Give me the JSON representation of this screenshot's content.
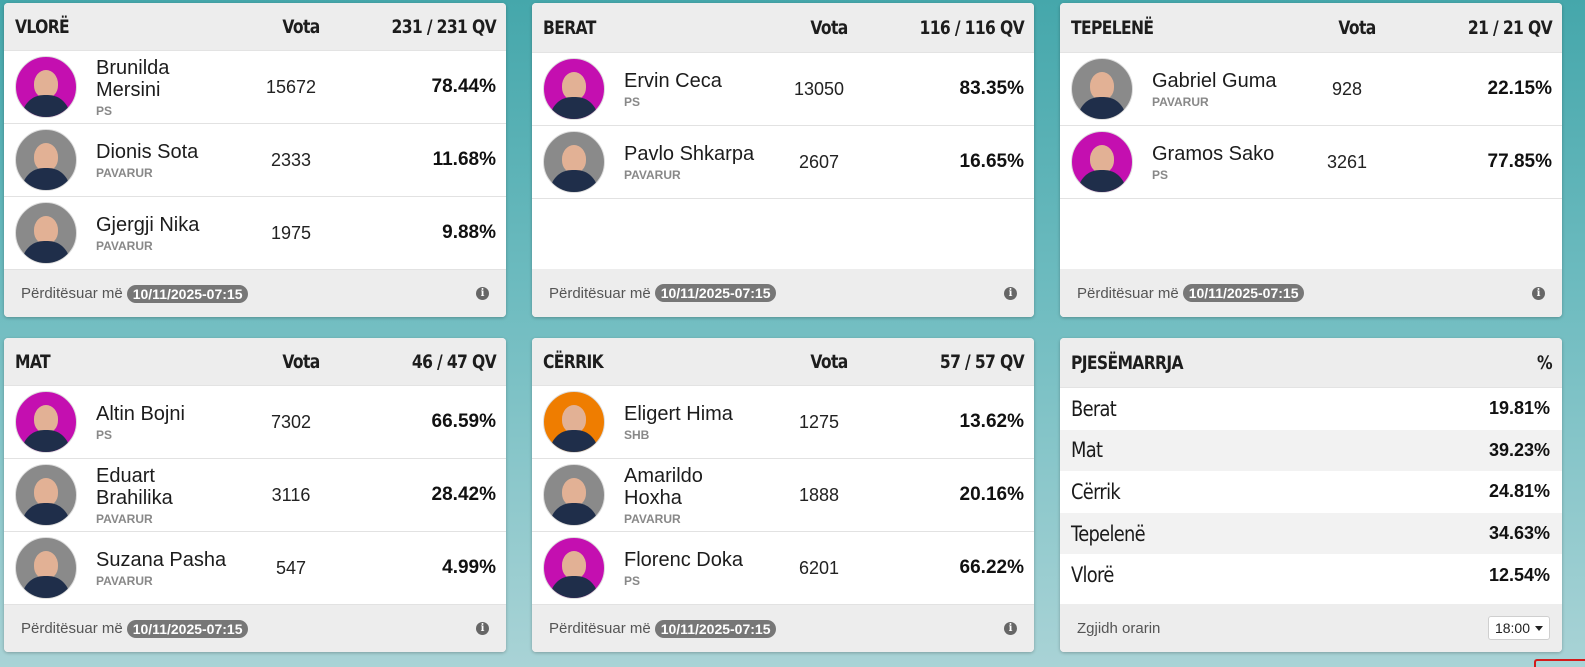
{
  "colors": {
    "ps": "#c40fb0",
    "pavarur": "#8a8a8a",
    "shb": "#ef7d00"
  },
  "cards": [
    {
      "title": "VLORË",
      "votes_header": "Vota",
      "qv": "231 / 231 QV",
      "candidates": [
        {
          "name": "Brunilda Mersini",
          "party": "PS",
          "votes": "15672",
          "pct": "78.44%"
        },
        {
          "name": "Dionis Sota",
          "party": "PAVARUR",
          "votes": "2333",
          "pct": "11.68%"
        },
        {
          "name": "Gjergji Nika",
          "party": "PAVARUR",
          "votes": "1975",
          "pct": "9.88%"
        }
      ],
      "updated_label": "Përditësuar më",
      "updated_at": "10/11/2025-07:15"
    },
    {
      "title": "BERAT",
      "votes_header": "Vota",
      "qv": "116 / 116 QV",
      "candidates": [
        {
          "name": "Ervin Ceca",
          "party": "PS",
          "votes": "13050",
          "pct": "83.35%"
        },
        {
          "name": "Pavlo Shkarpa",
          "party": "PAVARUR",
          "votes": "2607",
          "pct": "16.65%"
        }
      ],
      "updated_label": "Përditësuar më",
      "updated_at": "10/11/2025-07:15"
    },
    {
      "title": "TEPELENË",
      "votes_header": "Vota",
      "qv": "21 / 21 QV",
      "candidates": [
        {
          "name": "Gabriel Guma",
          "party": "PAVARUR",
          "votes": "928",
          "pct": "22.15%"
        },
        {
          "name": "Gramos Sako",
          "party": "PS",
          "votes": "3261",
          "pct": "77.85%"
        }
      ],
      "updated_label": "Përditësuar më",
      "updated_at": "10/11/2025-07:15"
    },
    {
      "title": "MAT",
      "votes_header": "Vota",
      "qv": "46 / 47 QV",
      "candidates": [
        {
          "name": "Altin Bojni",
          "party": "PS",
          "votes": "7302",
          "pct": "66.59%"
        },
        {
          "name": "Eduart Brahilika",
          "party": "PAVARUR",
          "votes": "3116",
          "pct": "28.42%"
        },
        {
          "name": "Suzana Pasha",
          "party": "PAVARUR",
          "votes": "547",
          "pct": "4.99%"
        }
      ],
      "updated_label": "Përditësuar më",
      "updated_at": "10/11/2025-07:15"
    },
    {
      "title": "CËRRIK",
      "votes_header": "Vota",
      "qv": "57 / 57 QV",
      "candidates": [
        {
          "name": "Eligert Hima",
          "party": "SHB",
          "votes": "1275",
          "pct": "13.62%"
        },
        {
          "name": "Amarildo Hoxha",
          "party": "PAVARUR",
          "votes": "1888",
          "pct": "20.16%"
        },
        {
          "name": "Florenc Doka",
          "party": "PS",
          "votes": "6201",
          "pct": "66.22%"
        }
      ],
      "updated_label": "Përditësuar më",
      "updated_at": "10/11/2025-07:15"
    }
  ],
  "turnout": {
    "title": "PJESËMARRJA",
    "pct_header": "%",
    "rows": [
      {
        "city": "Berat",
        "pct": "19.81%"
      },
      {
        "city": "Mat",
        "pct": "39.23%"
      },
      {
        "city": "Cërrik",
        "pct": "24.81%"
      },
      {
        "city": "Tepelenë",
        "pct": "34.63%"
      },
      {
        "city": "Vlorë",
        "pct": "12.54%"
      }
    ],
    "schedule_label": "Zgjidh orarin",
    "schedule_value": "18:00"
  }
}
